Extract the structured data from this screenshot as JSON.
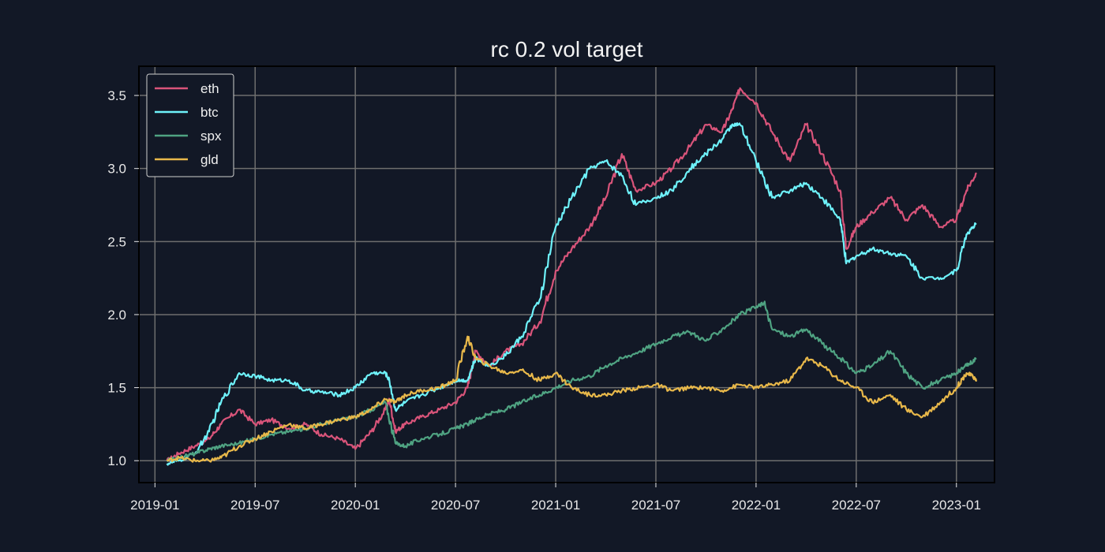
{
  "chart_data": {
    "type": "line",
    "title": "rc 0.2 vol target",
    "xlabel": "",
    "ylabel": "",
    "x_start": "2019-01",
    "x_end": "2023-01",
    "xlim": [
      2018.92,
      2023.19
    ],
    "ylim": [
      0.85,
      3.7
    ],
    "xticks": [
      {
        "label": "2019-01",
        "value": 2019.0
      },
      {
        "label": "2019-07",
        "value": 2019.5
      },
      {
        "label": "2020-01",
        "value": 2020.0
      },
      {
        "label": "2020-07",
        "value": 2020.5
      },
      {
        "label": "2021-01",
        "value": 2021.0
      },
      {
        "label": "2021-07",
        "value": 2021.5
      },
      {
        "label": "2022-01",
        "value": 2022.0
      },
      {
        "label": "2022-07",
        "value": 2022.5
      },
      {
        "label": "2023-01",
        "value": 2023.0
      }
    ],
    "yticks": [
      {
        "label": "1.0",
        "value": 1.0
      },
      {
        "label": "1.5",
        "value": 1.5
      },
      {
        "label": "2.0",
        "value": 2.0
      },
      {
        "label": "2.5",
        "value": 2.5
      },
      {
        "label": "3.0",
        "value": 3.0
      },
      {
        "label": "3.5",
        "value": 3.5
      }
    ],
    "grid": true,
    "legend_position": "top-left",
    "series": [
      {
        "name": "eth",
        "color": "#d9547a",
        "x": [
          2019.06,
          2019.12,
          2019.2,
          2019.27,
          2019.33,
          2019.42,
          2019.5,
          2019.58,
          2019.67,
          2019.75,
          2019.83,
          2019.92,
          2020.0,
          2020.08,
          2020.15,
          2020.17,
          2020.2,
          2020.25,
          2020.33,
          2020.42,
          2020.5,
          2020.56,
          2020.6,
          2020.67,
          2020.75,
          2020.83,
          2020.92,
          2021.0,
          2021.08,
          2021.17,
          2021.25,
          2021.33,
          2021.4,
          2021.5,
          2021.58,
          2021.67,
          2021.75,
          2021.83,
          2021.88,
          2021.92,
          2022.0,
          2022.08,
          2022.17,
          2022.25,
          2022.33,
          2022.42,
          2022.45,
          2022.5,
          2022.58,
          2022.67,
          2022.75,
          2022.83,
          2022.92,
          2023.0,
          2023.05,
          2023.1
        ],
        "values": [
          1.0,
          1.05,
          1.1,
          1.15,
          1.25,
          1.35,
          1.25,
          1.28,
          1.22,
          1.25,
          1.18,
          1.15,
          1.08,
          1.2,
          1.35,
          1.42,
          1.2,
          1.25,
          1.3,
          1.35,
          1.4,
          1.5,
          1.75,
          1.65,
          1.75,
          1.8,
          1.95,
          2.3,
          2.45,
          2.6,
          2.8,
          3.1,
          2.85,
          2.9,
          3.0,
          3.15,
          3.3,
          3.25,
          3.4,
          3.55,
          3.45,
          3.25,
          3.05,
          3.3,
          3.1,
          2.85,
          2.45,
          2.6,
          2.7,
          2.8,
          2.65,
          2.75,
          2.6,
          2.65,
          2.85,
          2.97
        ]
      },
      {
        "name": "btc",
        "color": "#6ef2fa",
        "x": [
          2019.06,
          2019.12,
          2019.2,
          2019.27,
          2019.33,
          2019.42,
          2019.5,
          2019.58,
          2019.67,
          2019.75,
          2019.83,
          2019.92,
          2020.0,
          2020.08,
          2020.15,
          2020.17,
          2020.2,
          2020.25,
          2020.33,
          2020.42,
          2020.5,
          2020.56,
          2020.6,
          2020.67,
          2020.75,
          2020.83,
          2020.92,
          2021.0,
          2021.08,
          2021.17,
          2021.25,
          2021.33,
          2021.4,
          2021.5,
          2021.58,
          2021.67,
          2021.75,
          2021.83,
          2021.88,
          2021.92,
          2022.0,
          2022.08,
          2022.17,
          2022.25,
          2022.33,
          2022.42,
          2022.45,
          2022.5,
          2022.58,
          2022.67,
          2022.75,
          2022.83,
          2022.92,
          2023.0,
          2023.05,
          2023.1
        ],
        "values": [
          0.98,
          1.0,
          1.05,
          1.2,
          1.4,
          1.6,
          1.58,
          1.55,
          1.55,
          1.48,
          1.47,
          1.45,
          1.5,
          1.6,
          1.6,
          1.55,
          1.35,
          1.4,
          1.45,
          1.5,
          1.55,
          1.55,
          1.7,
          1.65,
          1.72,
          1.85,
          2.1,
          2.6,
          2.8,
          3.0,
          3.05,
          2.95,
          2.75,
          2.8,
          2.85,
          3.0,
          3.1,
          3.2,
          3.3,
          3.3,
          3.05,
          2.8,
          2.85,
          2.9,
          2.8,
          2.65,
          2.35,
          2.4,
          2.45,
          2.42,
          2.4,
          2.25,
          2.25,
          2.3,
          2.55,
          2.62
        ]
      },
      {
        "name": "spx",
        "color": "#4fa382",
        "x": [
          2019.06,
          2019.12,
          2019.2,
          2019.27,
          2019.33,
          2019.42,
          2019.5,
          2019.58,
          2019.67,
          2019.75,
          2019.83,
          2019.92,
          2020.0,
          2020.08,
          2020.15,
          2020.2,
          2020.25,
          2020.33,
          2020.42,
          2020.5,
          2020.56,
          2020.6,
          2020.67,
          2020.75,
          2020.83,
          2020.92,
          2021.0,
          2021.08,
          2021.17,
          2021.25,
          2021.33,
          2021.42,
          2021.5,
          2021.58,
          2021.67,
          2021.75,
          2021.83,
          2021.92,
          2022.0,
          2022.04,
          2022.08,
          2022.17,
          2022.25,
          2022.33,
          2022.42,
          2022.5,
          2022.58,
          2022.67,
          2022.75,
          2022.83,
          2022.92,
          2023.0,
          2023.05,
          2023.1
        ],
        "values": [
          1.0,
          1.02,
          1.05,
          1.08,
          1.1,
          1.12,
          1.15,
          1.18,
          1.2,
          1.22,
          1.25,
          1.28,
          1.3,
          1.35,
          1.4,
          1.12,
          1.1,
          1.15,
          1.18,
          1.22,
          1.25,
          1.28,
          1.32,
          1.35,
          1.4,
          1.45,
          1.5,
          1.55,
          1.58,
          1.65,
          1.7,
          1.75,
          1.8,
          1.85,
          1.88,
          1.82,
          1.9,
          2.0,
          2.05,
          2.08,
          1.9,
          1.85,
          1.9,
          1.8,
          1.7,
          1.6,
          1.65,
          1.75,
          1.6,
          1.5,
          1.55,
          1.6,
          1.65,
          1.7
        ]
      },
      {
        "name": "gld",
        "color": "#e8b84a",
        "x": [
          2019.06,
          2019.12,
          2019.2,
          2019.27,
          2019.33,
          2019.42,
          2019.5,
          2019.58,
          2019.67,
          2019.75,
          2019.83,
          2019.92,
          2020.0,
          2020.08,
          2020.15,
          2020.2,
          2020.25,
          2020.33,
          2020.42,
          2020.5,
          2020.56,
          2020.6,
          2020.67,
          2020.75,
          2020.83,
          2020.92,
          2021.0,
          2021.08,
          2021.17,
          2021.25,
          2021.33,
          2021.42,
          2021.5,
          2021.58,
          2021.67,
          2021.75,
          2021.83,
          2021.92,
          2022.0,
          2022.08,
          2022.17,
          2022.25,
          2022.33,
          2022.42,
          2022.5,
          2022.58,
          2022.67,
          2022.75,
          2022.83,
          2022.92,
          2023.0,
          2023.05,
          2023.08,
          2023.1
        ],
        "values": [
          1.0,
          1.02,
          1.0,
          1.0,
          1.02,
          1.1,
          1.15,
          1.2,
          1.25,
          1.22,
          1.25,
          1.28,
          1.3,
          1.35,
          1.42,
          1.4,
          1.45,
          1.48,
          1.5,
          1.55,
          1.85,
          1.7,
          1.65,
          1.6,
          1.62,
          1.55,
          1.6,
          1.5,
          1.45,
          1.45,
          1.48,
          1.5,
          1.52,
          1.48,
          1.5,
          1.5,
          1.48,
          1.52,
          1.5,
          1.52,
          1.55,
          1.7,
          1.65,
          1.55,
          1.5,
          1.4,
          1.45,
          1.35,
          1.3,
          1.4,
          1.5,
          1.6,
          1.58,
          1.55
        ]
      }
    ]
  }
}
